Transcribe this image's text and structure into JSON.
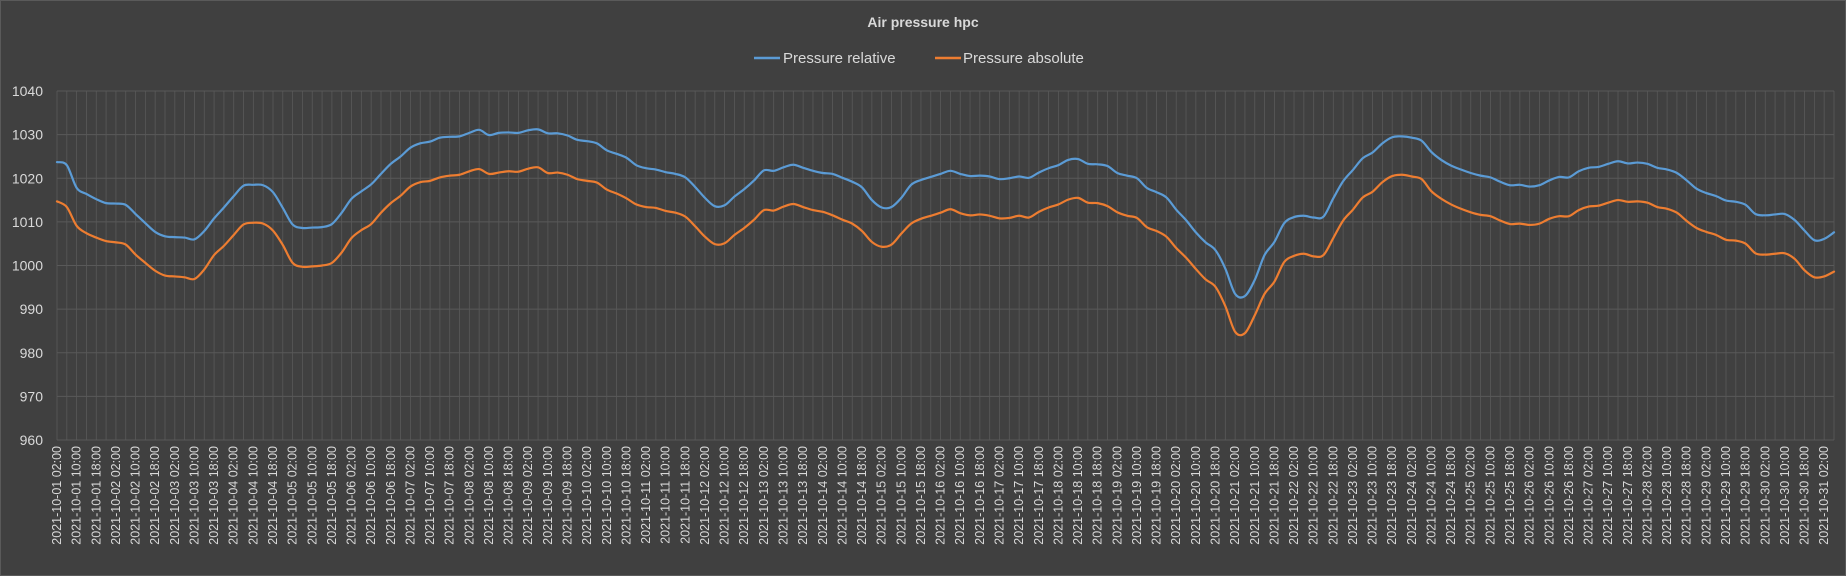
{
  "chart_data": {
    "type": "line",
    "title": "Air pressure hpc",
    "xlabel": "",
    "ylabel": "",
    "ylim": [
      960,
      1040
    ],
    "yticks": [
      960,
      970,
      980,
      990,
      1000,
      1010,
      1020,
      1030,
      1040
    ],
    "legend_position": "top-center",
    "grid": true,
    "x_start": "2021-10-01 02:00",
    "x_step_hours": 4,
    "x_label_every": 2,
    "colors": {
      "background": "#404040",
      "grid": "#595959",
      "text": "#d9d9d9"
    },
    "series": [
      {
        "name": "Pressure relative",
        "color": "#5b9bd5",
        "values": [
          1023.7,
          1023.0,
          1017.8,
          1016.4,
          1015.2,
          1014.3,
          1014.2,
          1013.9,
          1011.8,
          1009.7,
          1007.7,
          1006.7,
          1006.5,
          1006.4,
          1006.0,
          1007.9,
          1010.8,
          1013.3,
          1015.9,
          1018.3,
          1018.5,
          1018.4,
          1016.8,
          1013.2,
          1009.4,
          1008.6,
          1008.7,
          1008.8,
          1009.5,
          1012.1,
          1015.3,
          1017.0,
          1018.6,
          1021.0,
          1023.3,
          1025.0,
          1027.0,
          1028.0,
          1028.4,
          1029.3,
          1029.5,
          1029.6,
          1030.4,
          1031.1,
          1029.9,
          1030.4,
          1030.5,
          1030.4,
          1031.0,
          1031.2,
          1030.3,
          1030.3,
          1029.8,
          1028.8,
          1028.5,
          1028.0,
          1026.4,
          1025.6,
          1024.7,
          1023.0,
          1022.3,
          1022.0,
          1021.4,
          1021.0,
          1020.2,
          1018.0,
          1015.5,
          1013.6,
          1013.8,
          1015.8,
          1017.5,
          1019.5,
          1021.8,
          1021.7,
          1022.5,
          1023.1,
          1022.4,
          1021.7,
          1021.2,
          1021.0,
          1020.1,
          1019.2,
          1017.9,
          1015.0,
          1013.3,
          1013.4,
          1015.5,
          1018.5,
          1019.6,
          1020.3,
          1021.0,
          1021.7,
          1021.0,
          1020.5,
          1020.6,
          1020.4,
          1019.8,
          1020.0,
          1020.4,
          1020.1,
          1021.3,
          1022.3,
          1023.0,
          1024.2,
          1024.4,
          1023.3,
          1023.2,
          1022.8,
          1021.2,
          1020.6,
          1020.0,
          1017.8,
          1016.8,
          1015.6,
          1012.8,
          1010.4,
          1007.6,
          1005.3,
          1003.5,
          999.3,
          993.5,
          993.0,
          996.7,
          1002.4,
          1005.4,
          1009.7,
          1011.1,
          1011.4,
          1011.0,
          1011.2,
          1015.4,
          1019.3,
          1021.9,
          1024.6,
          1025.9,
          1028.0,
          1029.4,
          1029.6,
          1029.3,
          1028.6,
          1026.0,
          1024.2,
          1022.9,
          1022.0,
          1021.2,
          1020.6,
          1020.2,
          1019.2,
          1018.4,
          1018.5,
          1018.1,
          1018.4,
          1019.5,
          1020.3,
          1020.2,
          1021.6,
          1022.4,
          1022.6,
          1023.3,
          1023.9,
          1023.4,
          1023.6,
          1023.3,
          1022.4,
          1022.0,
          1021.2,
          1019.5,
          1017.6,
          1016.6,
          1015.9,
          1014.9,
          1014.6,
          1013.9,
          1011.8,
          1011.5,
          1011.7,
          1011.8,
          1010.4,
          1008.0,
          1005.8,
          1006.1,
          1007.6
        ]
      },
      {
        "name": "Pressure absolute",
        "color": "#ed7d31",
        "values": [
          1014.7,
          1013.4,
          1009.1,
          1007.4,
          1006.4,
          1005.6,
          1005.3,
          1004.8,
          1002.5,
          1000.6,
          998.8,
          997.7,
          997.5,
          997.3,
          996.9,
          999.1,
          1002.4,
          1004.5,
          1007.0,
          1009.4,
          1009.8,
          1009.6,
          1008.0,
          1004.7,
          1000.6,
          999.7,
          999.8,
          1000.0,
          1000.6,
          1003.0,
          1006.3,
          1008.1,
          1009.5,
          1012.1,
          1014.3,
          1016.0,
          1018.1,
          1019.1,
          1019.4,
          1020.2,
          1020.6,
          1020.8,
          1021.6,
          1022.1,
          1021.0,
          1021.3,
          1021.6,
          1021.5,
          1022.2,
          1022.5,
          1021.2,
          1021.3,
          1020.8,
          1019.8,
          1019.4,
          1019.0,
          1017.4,
          1016.5,
          1015.4,
          1014.0,
          1013.4,
          1013.2,
          1012.5,
          1012.1,
          1011.2,
          1009.0,
          1006.6,
          1004.9,
          1005.1,
          1007.0,
          1008.6,
          1010.5,
          1012.7,
          1012.6,
          1013.5,
          1014.1,
          1013.4,
          1012.7,
          1012.3,
          1011.5,
          1010.5,
          1009.6,
          1007.9,
          1005.4,
          1004.3,
          1004.8,
          1007.3,
          1009.6,
          1010.7,
          1011.4,
          1012.1,
          1012.9,
          1012.0,
          1011.5,
          1011.7,
          1011.4,
          1010.8,
          1010.9,
          1011.4,
          1011.0,
          1012.3,
          1013.3,
          1014.0,
          1015.1,
          1015.5,
          1014.4,
          1014.3,
          1013.6,
          1012.2,
          1011.4,
          1010.9,
          1008.8,
          1007.9,
          1006.6,
          1004.0,
          1001.8,
          999.2,
          996.8,
          995.1,
          990.7,
          984.8,
          984.5,
          988.6,
          993.5,
          996.3,
          1000.8,
          1002.2,
          1002.7,
          1002.1,
          1002.4,
          1006.3,
          1010.3,
          1012.8,
          1015.6,
          1016.9,
          1019.1,
          1020.5,
          1020.8,
          1020.4,
          1019.8,
          1017.0,
          1015.3,
          1014.0,
          1013.0,
          1012.2,
          1011.6,
          1011.3,
          1010.3,
          1009.5,
          1009.6,
          1009.3,
          1009.6,
          1010.7,
          1011.3,
          1011.3,
          1012.7,
          1013.5,
          1013.7,
          1014.4,
          1015.0,
          1014.6,
          1014.7,
          1014.4,
          1013.4,
          1013.0,
          1012.1,
          1010.2,
          1008.6,
          1007.7,
          1007.0,
          1005.9,
          1005.7,
          1005.0,
          1002.8,
          1002.5,
          1002.7,
          1002.8,
          1001.5,
          998.9,
          997.3,
          997.5,
          998.6
        ]
      }
    ]
  }
}
